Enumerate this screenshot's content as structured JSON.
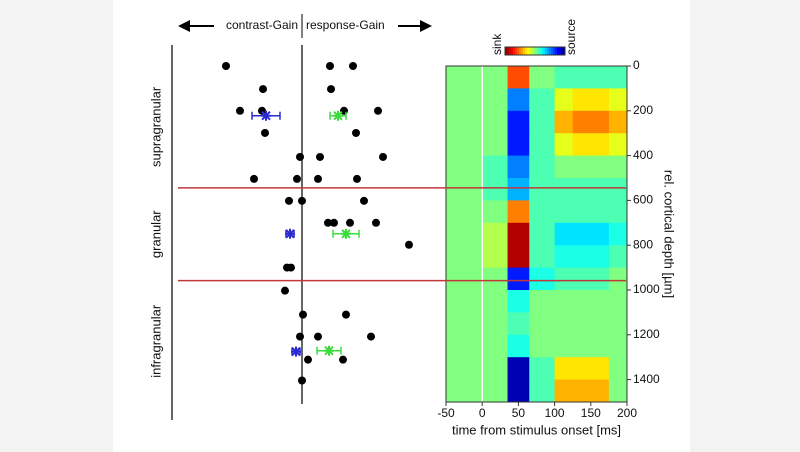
{
  "chart_data": [
    {
      "type": "scatter",
      "label_left": "contrast-Gain",
      "label_right": "response-Gain",
      "layer_labels": [
        "supragranular",
        "granular",
        "infragranular"
      ],
      "layer_boundaries": [
        544,
        958
      ],
      "xlim": [
        -1.3,
        1.3
      ],
      "ylim": [
        0,
        1500
      ],
      "points": {
        "color": "#000000",
        "x": [
          -0.76,
          -0.39,
          0.28,
          0.51,
          0.29,
          -0.62,
          -0.4,
          0.42,
          0.76,
          -0.37,
          0.54,
          -0.02,
          0.18,
          0.81,
          -0.48,
          -0.05,
          0.16,
          0.55,
          0.0,
          -0.13,
          0.62,
          0.26,
          0.32,
          0.48,
          0.74,
          1.07,
          -0.15,
          -0.11,
          -0.17,
          0.01,
          0.44,
          -0.02,
          0.16,
          0.69,
          0.06,
          0.41,
          0.0
        ],
        "y": [
          0,
          103,
          0,
          0,
          103,
          200,
          200,
          200,
          200,
          299,
          299,
          406,
          406,
          406,
          504,
          504,
          504,
          504,
          602,
          602,
          602,
          700,
          700,
          700,
          700,
          798,
          900,
          900,
          1003,
          1110,
          1110,
          1208,
          1208,
          1208,
          1311,
          1311,
          1404
        ]
      },
      "means": [
        {
          "color": "#2a2ad0",
          "x": [
            -0.36,
            -0.12,
            -0.06
          ],
          "xerr": [
            0.14,
            0.04,
            0.04
          ],
          "y": [
            222,
            749,
            1275
          ]
        },
        {
          "color": "#3ddc3d",
          "x": [
            0.36,
            0.44,
            0.27
          ],
          "xerr": [
            0.08,
            0.13,
            0.12
          ],
          "y": [
            222,
            749,
            1271
          ]
        }
      ]
    },
    {
      "type": "heatmap",
      "xlabel": "time from stimulus onset [ms]",
      "ylabel": "rel. cortical depth [µm]",
      "colorbar_low": "sink",
      "colorbar_high": "source",
      "colorscale": "jet",
      "clim": [
        -1,
        1
      ],
      "onset_line": 0,
      "xlim": [
        -50,
        200
      ],
      "ylim": [
        0,
        1500
      ],
      "xticks": [
        -50,
        0,
        50,
        100,
        150,
        200
      ],
      "yticks": [
        0,
        200,
        400,
        600,
        800,
        1000,
        1200,
        1400
      ],
      "x_bins": [
        -50,
        0,
        35,
        65,
        100,
        125,
        175,
        200
      ],
      "y_bins": [
        0,
        100,
        200,
        300,
        400,
        500,
        600,
        700,
        800,
        900,
        1000,
        1100,
        1200,
        1300,
        1400,
        1500
      ],
      "z": [
        [
          0,
          0,
          -0.6,
          0,
          0.1,
          0.1,
          0.1
        ],
        [
          0,
          0,
          0.5,
          0.1,
          -0.2,
          -0.3,
          -0.2
        ],
        [
          0,
          0,
          0.7,
          0.1,
          -0.4,
          -0.5,
          -0.4
        ],
        [
          0,
          0,
          0.7,
          0.1,
          -0.2,
          -0.3,
          -0.2
        ],
        [
          0,
          0.1,
          0.5,
          0.1,
          0,
          0,
          0
        ],
        [
          0,
          0.1,
          0.4,
          0.1,
          0.1,
          0.1,
          0.1
        ],
        [
          0,
          0,
          -0.5,
          0.1,
          0.1,
          0.1,
          0.1
        ],
        [
          0,
          -0.1,
          -0.9,
          0.1,
          0.3,
          0.3,
          0.2
        ],
        [
          0,
          -0.1,
          -0.9,
          0.1,
          0.2,
          0.2,
          0.1
        ],
        [
          0,
          0,
          0.7,
          0.2,
          0.1,
          0.1,
          0
        ],
        [
          0,
          0,
          0.2,
          0,
          0,
          0,
          0
        ],
        [
          0,
          0,
          0.1,
          0,
          0,
          0,
          0
        ],
        [
          0,
          0,
          0.2,
          0,
          0,
          0,
          0
        ],
        [
          0,
          0,
          0.9,
          0.1,
          -0.3,
          -0.3,
          0
        ],
        [
          0,
          0,
          0.9,
          0.1,
          -0.4,
          -0.4,
          0
        ]
      ]
    }
  ]
}
